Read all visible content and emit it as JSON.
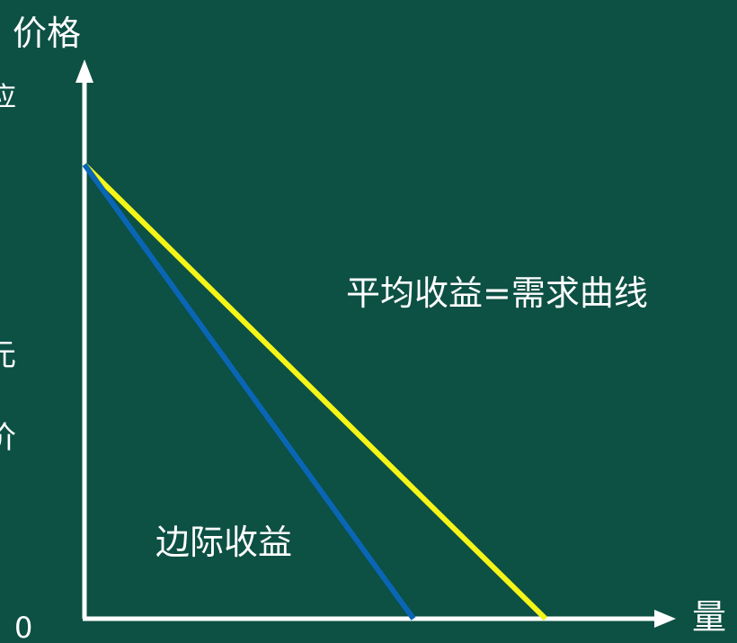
{
  "labels": {
    "y_axis": "价格",
    "x_axis": "量",
    "origin": "0",
    "average_revenue": "平均收益=需求曲线",
    "marginal_revenue": "边际收益"
  },
  "edge_fragments": [
    "应",
    "元",
    "价"
  ],
  "colors": {
    "background": "#0d5044",
    "axes": "#ffffff",
    "average_revenue_line": "#f5f518",
    "marginal_revenue_line": "#0a66b5"
  }
}
